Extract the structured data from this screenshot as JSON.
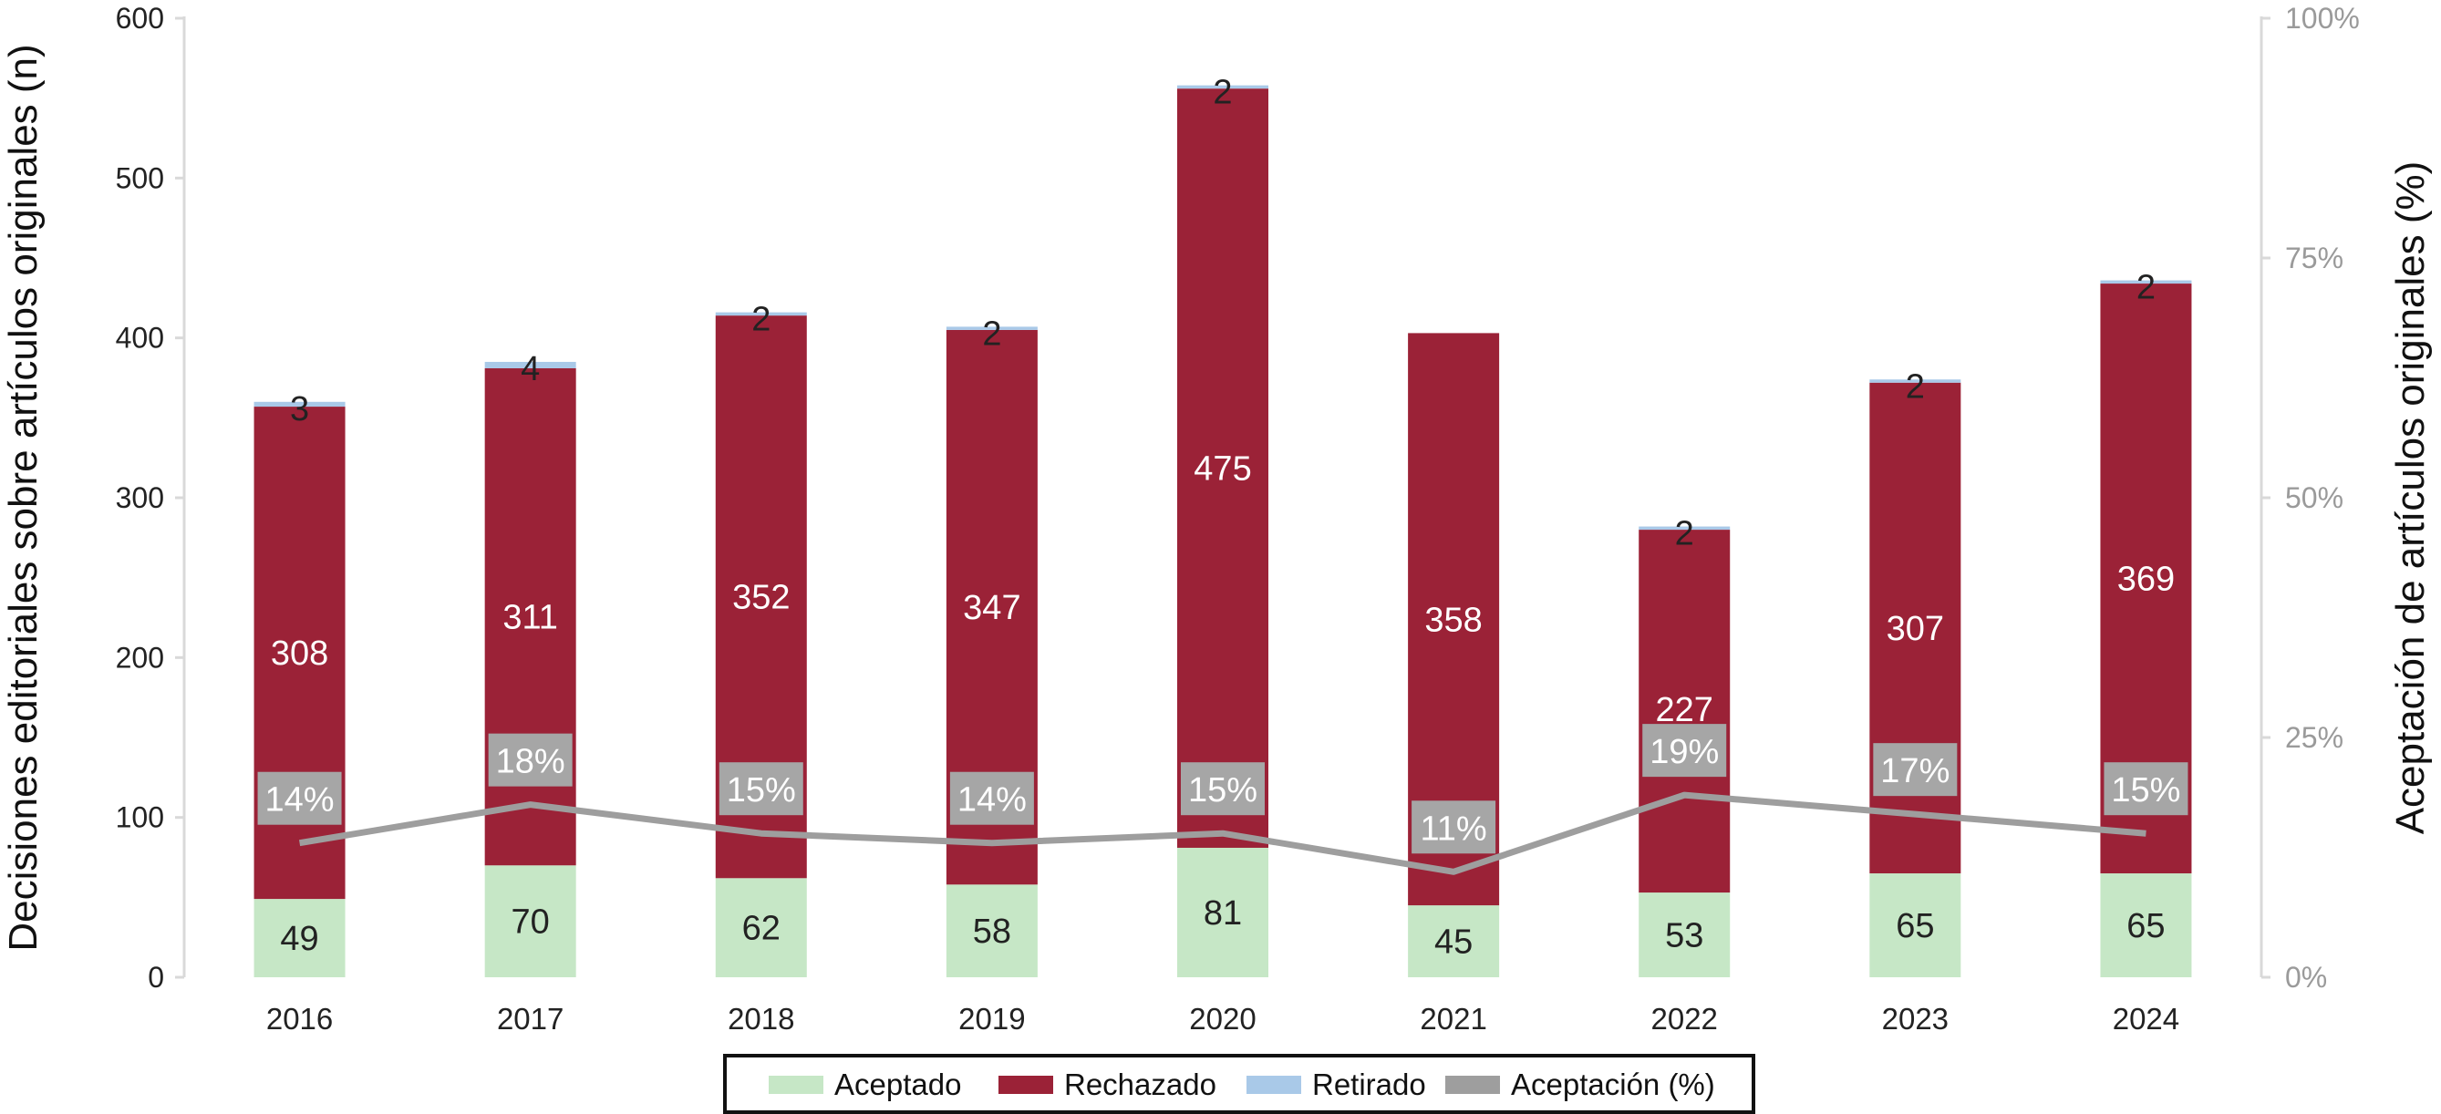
{
  "chart_data": {
    "type": "bar",
    "stacked": true,
    "categories": [
      "2016",
      "2017",
      "2018",
      "2019",
      "2020",
      "2021",
      "2022",
      "2023",
      "2024"
    ],
    "series": [
      {
        "name": "Aceptado",
        "color": "#c6e7c6",
        "values": [
          49,
          70,
          62,
          58,
          81,
          45,
          53,
          65,
          65
        ],
        "labels": [
          "49",
          "70",
          "62",
          "58",
          "81",
          "45",
          "53",
          "65",
          "65"
        ]
      },
      {
        "name": "Rechazado",
        "color": "#9b2237",
        "values": [
          308,
          311,
          352,
          347,
          475,
          358,
          227,
          307,
          369
        ],
        "labels": [
          "308",
          "311",
          "352",
          "347",
          "475",
          "358",
          "227",
          "307",
          "369"
        ]
      },
      {
        "name": "Retirado",
        "color": "#a9c9e8",
        "values": [
          3,
          4,
          2,
          2,
          2,
          0,
          2,
          2,
          2
        ],
        "labels": [
          "3",
          "4",
          "2",
          "2",
          "2",
          "",
          "2",
          "2",
          "2"
        ]
      }
    ],
    "line_series": {
      "name": "Aceptación (%)",
      "color": "#9e9e9e",
      "axis": "right",
      "values": [
        14,
        18,
        15,
        14,
        15,
        11,
        19,
        17,
        15
      ],
      "labels": [
        "14%",
        "18%",
        "15%",
        "14%",
        "15%",
        "11%",
        "19%",
        "17%",
        "15%"
      ]
    },
    "ylabel": "Decisiones editoriales sobre artículos originales (n)",
    "y2label": "Aceptación de artículos originales (%)",
    "ylim": [
      0,
      600
    ],
    "y2lim": [
      0,
      100
    ],
    "yticks": [
      "0",
      "100",
      "200",
      "300",
      "400",
      "500",
      "600"
    ],
    "y2ticks": [
      "0%",
      "25%",
      "50%",
      "75%",
      "100%"
    ],
    "grid": false,
    "legend_position": "bottom",
    "legend": [
      "Aceptado",
      "Rechazado",
      "Retirado",
      "Aceptación (%)"
    ]
  }
}
